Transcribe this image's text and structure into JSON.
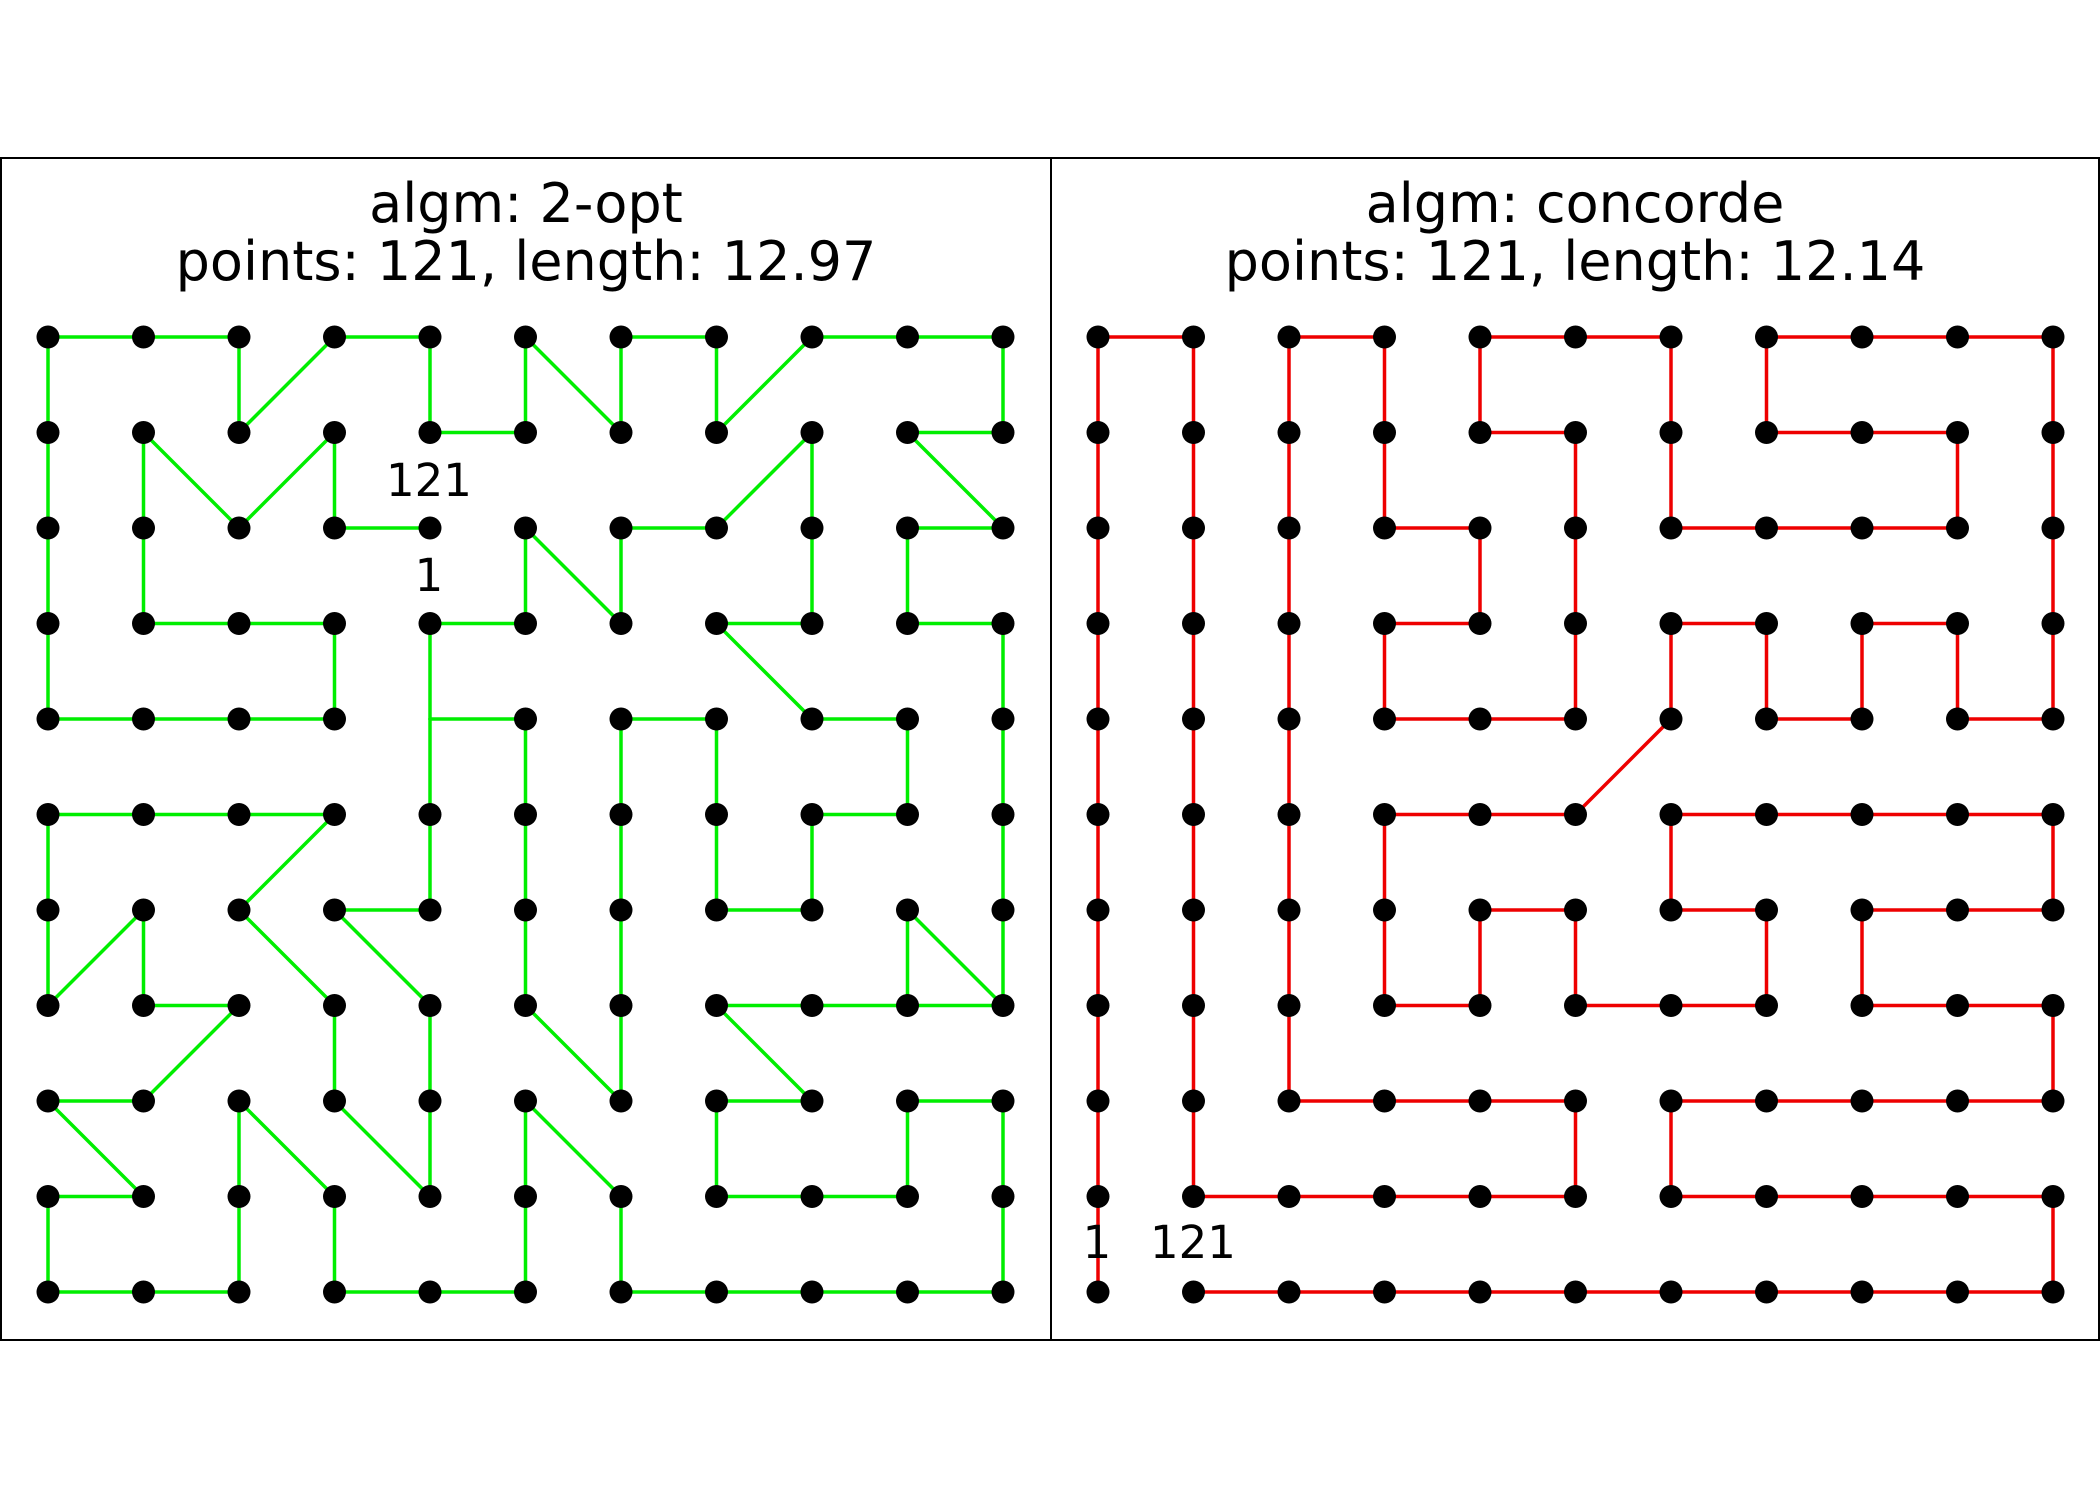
{
  "figure": {
    "background": "#ffffff",
    "point_color": "#000000"
  },
  "panels": [
    {
      "title_line1": "algm: 2-opt",
      "title_line2": "points: 121, length: 12.97",
      "edge_color": "#00ee00",
      "start_label": "1",
      "end_label": "121",
      "segments": [
        [
          [
            0,
            0
          ],
          [
            0,
            1
          ]
        ],
        [
          [
            0,
            1
          ],
          [
            0,
            2
          ]
        ],
        [
          [
            0,
            2
          ],
          [
            0,
            3
          ]
        ],
        [
          [
            0,
            3
          ],
          [
            0,
            4
          ]
        ],
        [
          [
            0,
            4
          ],
          [
            0,
            5
          ]
        ],
        [
          [
            0,
            5
          ],
          [
            1,
            5
          ]
        ],
        [
          [
            1,
            5
          ],
          [
            2,
            5
          ]
        ],
        [
          [
            2,
            5
          ],
          [
            2,
            4
          ]
        ],
        [
          [
            2,
            4
          ],
          [
            3,
            5
          ]
        ],
        [
          [
            3,
            5
          ],
          [
            4,
            5
          ]
        ],
        [
          [
            4,
            5
          ],
          [
            4,
            4
          ]
        ],
        [
          [
            4,
            4
          ],
          [
            5,
            4
          ]
        ],
        [
          [
            5,
            4
          ],
          [
            5,
            5
          ]
        ],
        [
          [
            5,
            5
          ],
          [
            6,
            4
          ]
        ],
        [
          [
            6,
            4
          ],
          [
            6,
            5
          ]
        ],
        [
          [
            6,
            5
          ],
          [
            7,
            5
          ]
        ],
        [
          [
            7,
            5
          ],
          [
            7,
            4
          ]
        ],
        [
          [
            7,
            4
          ],
          [
            8,
            5
          ]
        ],
        [
          [
            8,
            5
          ],
          [
            9,
            5
          ]
        ],
        [
          [
            9,
            5
          ],
          [
            10,
            5
          ]
        ],
        [
          [
            10,
            5
          ],
          [
            10,
            4
          ]
        ],
        [
          [
            10,
            4
          ],
          [
            9,
            4
          ]
        ],
        [
          [
            9,
            4
          ],
          [
            10,
            3
          ]
        ],
        [
          [
            10,
            3
          ],
          [
            9,
            3
          ]
        ],
        [
          [
            9,
            3
          ],
          [
            9,
            2
          ]
        ],
        [
          [
            9,
            2
          ],
          [
            10,
            2
          ]
        ],
        [
          [
            10,
            2
          ],
          [
            10,
            1
          ]
        ],
        [
          [
            10,
            1
          ],
          [
            10,
            0
          ]
        ],
        [
          [
            10,
            0
          ],
          [
            9,
            0
          ]
        ],
        [
          [
            9,
            0
          ],
          [
            8,
            0
          ]
        ],
        [
          [
            8,
            0
          ],
          [
            7,
            0
          ]
        ],
        [
          [
            7,
            0
          ],
          [
            6,
            0
          ]
        ],
        [
          [
            6,
            0
          ],
          [
            5,
            0
          ]
        ],
        [
          [
            5,
            0
          ],
          [
            4,
            0
          ]
        ],
        [
          [
            4,
            0
          ],
          [
            3,
            0
          ]
        ],
        [
          [
            3,
            0
          ],
          [
            2,
            0
          ]
        ],
        [
          [
            2,
            0
          ],
          [
            1,
            0
          ]
        ],
        [
          [
            1,
            0
          ],
          [
            0,
            0
          ]
        ],
        [
          [
            1,
            4
          ],
          [
            2,
            3
          ]
        ],
        [
          [
            2,
            3
          ],
          [
            3,
            4
          ]
        ],
        [
          [
            3,
            4
          ],
          [
            3,
            3
          ]
        ],
        [
          [
            3,
            3
          ],
          [
            4,
            3
          ]
        ],
        [
          [
            1,
            4
          ],
          [
            1,
            3
          ]
        ],
        [
          [
            1,
            3
          ],
          [
            1,
            2
          ]
        ],
        [
          [
            1,
            2
          ],
          [
            2,
            2
          ]
        ],
        [
          [
            2,
            2
          ],
          [
            3,
            2
          ]
        ],
        [
          [
            3,
            2
          ],
          [
            3,
            1
          ]
        ],
        [
          [
            3,
            1
          ],
          [
            2,
            1
          ]
        ],
        [
          [
            2,
            1
          ],
          [
            1,
            1
          ]
        ],
        [
          [
            1,
            1
          ],
          [
            0,
            1
          ]
        ],
        [
          [
            4,
            2
          ],
          [
            5,
            2
          ]
        ],
        [
          [
            5,
            2
          ],
          [
            5,
            3
          ]
        ],
        [
          [
            5,
            3
          ],
          [
            6,
            2
          ]
        ],
        [
          [
            6,
            2
          ],
          [
            6,
            3
          ]
        ],
        [
          [
            6,
            3
          ],
          [
            7,
            3
          ]
        ],
        [
          [
            7,
            3
          ],
          [
            8,
            4
          ]
        ],
        [
          [
            8,
            4
          ],
          [
            8,
            3
          ]
        ],
        [
          [
            8,
            3
          ],
          [
            8,
            2
          ]
        ],
        [
          [
            8,
            2
          ],
          [
            7,
            2
          ]
        ],
        [
          [
            7,
            2
          ],
          [
            8,
            1
          ]
        ],
        [
          [
            8,
            1
          ],
          [
            9,
            1
          ]
        ],
        [
          [
            9,
            1
          ],
          [
            9,
            2
          ]
        ],
        [
          [
            0,
            2
          ],
          [
            1,
            3
          ]
        ],
        [
          [
            1,
            3
          ],
          [
            1,
            2
          ]
        ],
        [
          [
            2,
            3
          ],
          [
            3,
            4
          ]
        ],
        [
          [
            4,
            1
          ],
          [
            4,
            0
          ]
        ],
        [
          [
            4,
            0
          ],
          [
            5,
            0
          ]
        ],
        [
          [
            5,
            0
          ],
          [
            5,
            1
          ]
        ],
        [
          [
            5,
            1
          ],
          [
            5,
            2
          ]
        ],
        [
          [
            5,
            2
          ],
          [
            5,
            3
          ]
        ],
        [
          [
            5,
            3
          ],
          [
            5,
            4
          ]
        ],
        [
          [
            5,
            4
          ],
          [
            4,
            4
          ]
        ],
        [
          [
            4,
            4
          ],
          [
            4,
            3
          ]
        ],
        [
          [
            4,
            3
          ],
          [
            4,
            2
          ]
        ],
        [
          [
            4,
            2
          ],
          [
            3,
            2
          ]
        ],
        [
          [
            3,
            2
          ],
          [
            4,
            1
          ]
        ],
        [
          [
            2,
            0
          ],
          [
            3,
            1
          ]
        ],
        [
          [
            3,
            1
          ],
          [
            3,
            0
          ]
        ],
        [
          [
            6,
            0
          ],
          [
            6,
            1
          ]
        ],
        [
          [
            6,
            1
          ],
          [
            5,
            2
          ]
        ],
        [
          [
            5,
            2
          ],
          [
            6,
            3
          ]
        ],
        [
          [
            6,
            3
          ],
          [
            6,
            4
          ]
        ],
        [
          [
            6,
            4
          ],
          [
            7,
            4
          ]
        ],
        [
          [
            7,
            2
          ],
          [
            7,
            3
          ]
        ],
        [
          [
            7,
            3
          ],
          [
            8,
            3
          ]
        ],
        [
          [
            8,
            3
          ],
          [
            9,
            3
          ]
        ],
        [
          [
            9,
            3
          ],
          [
            9,
            2
          ]
        ],
        [
          [
            7,
            1
          ],
          [
            8,
            1
          ]
        ],
        [
          [
            8,
            1
          ],
          [
            9,
            1
          ]
        ],
        [
          [
            9,
            1
          ],
          [
            9,
            0
          ]
        ],
        [
          [
            9,
            0
          ],
          [
            10,
            0
          ]
        ],
        [
          [
            10,
            0
          ],
          [
            10,
            1
          ]
        ]
      ]
    },
    {
      "title_line1": "algm: concorde",
      "title_line2": "points: 121, length: 12.14",
      "edge_color": "#ee0000",
      "start_label": "1",
      "end_label": "121",
      "segments": []
    }
  ]
}
